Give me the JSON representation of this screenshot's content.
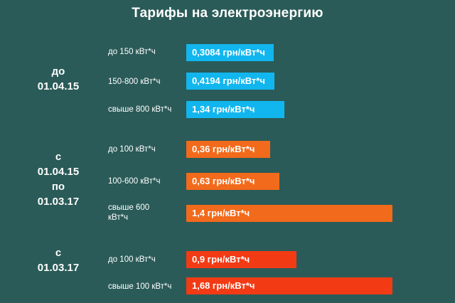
{
  "title": "Тарифы на электроэнергию",
  "colors": {
    "background": "#2a5b58",
    "group1": "#12b6ee",
    "group2": "#f26a1b",
    "group3": "#f23b15"
  },
  "chart_data": {
    "type": "bar",
    "orientation": "horizontal",
    "title": "Тарифы на электроэнергию",
    "unit": "грн/кВт*ч",
    "groups": [
      {
        "period_lines": [
          "до",
          "01.04.15"
        ],
        "color": "#12b6ee",
        "bars": [
          {
            "category": "до 150 кВт*ч",
            "value": 0.3084,
            "label": "0,3084 грн/кВт*ч"
          },
          {
            "category": "150-800 кВт*ч",
            "value": 0.4194,
            "label": "0,4194 грн/кВт*ч"
          },
          {
            "category": "свыше 800 кВт*ч",
            "value": 1.34,
            "label": "1,34 грн/кВт*ч"
          }
        ]
      },
      {
        "period_lines": [
          "с",
          "01.04.15",
          "по",
          "01.03.17"
        ],
        "color": "#f26a1b",
        "bars": [
          {
            "category": "до 100 кВт*ч",
            "value": 0.36,
            "label": "0,36 грн/кВт*ч"
          },
          {
            "category": "100-600 кВт*ч",
            "value": 0.63,
            "label": "0,63 грн/кВт*ч"
          },
          {
            "category": "свыше 600 кВт*ч",
            "value": 1.4,
            "label": "1,4 грн/кВт*ч"
          }
        ]
      },
      {
        "period_lines": [
          "с",
          "01.03.17"
        ],
        "color": "#f23b15",
        "bars": [
          {
            "category": "до 100 кВт*ч",
            "value": 0.9,
            "label": "0,9 грн/кВт*ч"
          },
          {
            "category": "свыше 100 кВт*ч",
            "value": 1.68,
            "label": "1,68 грн/кВт*ч"
          }
        ]
      }
    ]
  }
}
